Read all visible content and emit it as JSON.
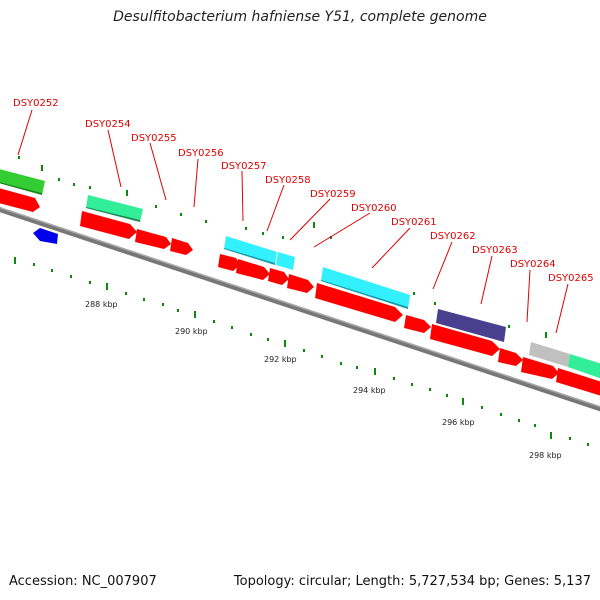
{
  "title": "Desulfitobacterium hafniense Y51, complete genome",
  "footer": {
    "accession": "Accession: NC_007907",
    "summary": "Topology: circular; Length: 5,727,534 bp; Genes: 5,137"
  },
  "colors": {
    "cds": "#ff0000",
    "gene_green": "#33cc33",
    "gene_mint": "#33ee99",
    "gene_cyan": "#33f0ff",
    "gene_navy": "#4a3f8f",
    "gene_gray": "#c0c0c0",
    "gene_blue": "#0000ee",
    "tick": "#0a8a0a",
    "backbone": "#808080",
    "label": "#e00000"
  },
  "gene_labels": [
    "DSY0252",
    "DSY0254",
    "DSY0255",
    "DSY0256",
    "DSY0257",
    "DSY0258",
    "DSY0259",
    "DSY0260",
    "DSY0261",
    "DSY0262",
    "DSY0263",
    "DSY0264",
    "DSY0265"
  ],
  "scale_labels": [
    "288 kbp",
    "290 kbp",
    "292 kbp",
    "294 kbp",
    "296 kbp",
    "298 kbp"
  ]
}
